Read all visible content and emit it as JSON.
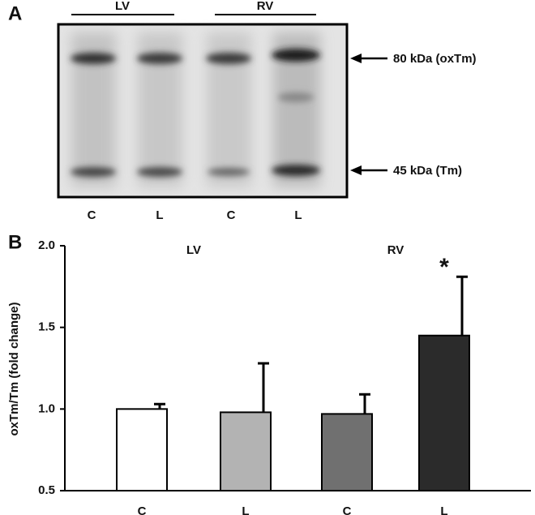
{
  "panel_a": {
    "label": "A",
    "groups": [
      "LV",
      "RV"
    ],
    "lanes": [
      "C",
      "L",
      "C",
      "L"
    ],
    "bands": [
      "80 kDa (oxTm)",
      "45 kDa (Tm)"
    ]
  },
  "chart_data": {
    "type": "bar",
    "panel_label": "B",
    "y_label": "oxTm/Tm (fold change)",
    "groups": [
      "LV",
      "RV"
    ],
    "categories": [
      "C",
      "L",
      "C",
      "L"
    ],
    "values": [
      1.0,
      0.98,
      0.97,
      1.45
    ],
    "errors": [
      0.03,
      0.3,
      0.12,
      0.36
    ],
    "colors": [
      "#ffffff",
      "#b3b3b3",
      "#707070",
      "#2b2b2b"
    ],
    "annotation": "*",
    "ylim": [
      0.5,
      2.0
    ],
    "yticks": [
      0.5,
      {
        "value": 1.0,
        "label": "1.0"
      },
      1.5,
      {
        "value": 2.0,
        "label": "2.0"
      }
    ]
  }
}
